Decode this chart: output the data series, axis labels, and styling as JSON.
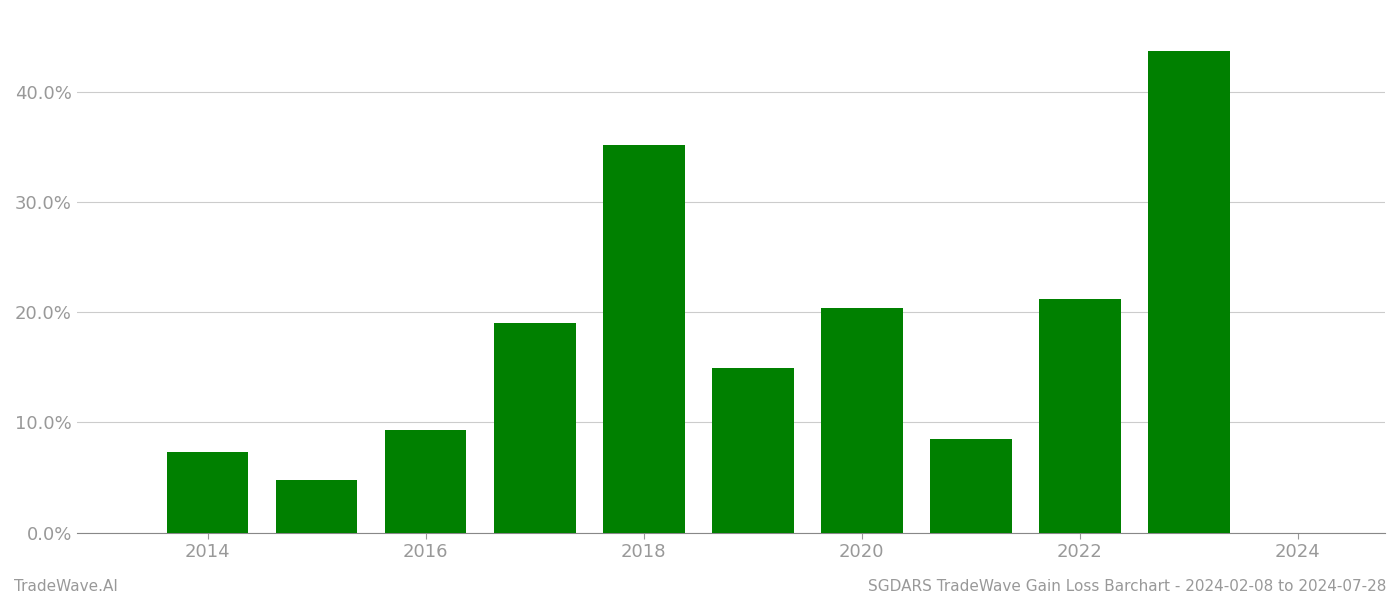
{
  "years": [
    2014,
    2015,
    2016,
    2017,
    2018,
    2019,
    2020,
    2021,
    2022,
    2023
  ],
  "values": [
    0.073,
    0.048,
    0.093,
    0.19,
    0.352,
    0.149,
    0.204,
    0.085,
    0.212,
    0.437
  ],
  "bar_color": "#008000",
  "background_color": "#ffffff",
  "grid_color": "#cccccc",
  "axis_color": "#888888",
  "tick_color": "#999999",
  "yticks": [
    0.0,
    0.1,
    0.2,
    0.3,
    0.4
  ],
  "ytick_labels": [
    "0.0%",
    "10.0%",
    "20.0%",
    "30.0%",
    "40.0%"
  ],
  "xtick_labels": [
    "2014",
    "2016",
    "2018",
    "2020",
    "2022",
    "2024"
  ],
  "xticks": [
    2014,
    2016,
    2018,
    2020,
    2022,
    2024
  ],
  "footer_left": "TradeWave.AI",
  "footer_right": "SGDARS TradeWave Gain Loss Barchart - 2024-02-08 to 2024-07-28",
  "footer_color": "#999999",
  "footer_fontsize": 11,
  "bar_width": 0.75,
  "xlim": [
    2012.8,
    2024.8
  ],
  "ylim": [
    0,
    0.47
  ]
}
